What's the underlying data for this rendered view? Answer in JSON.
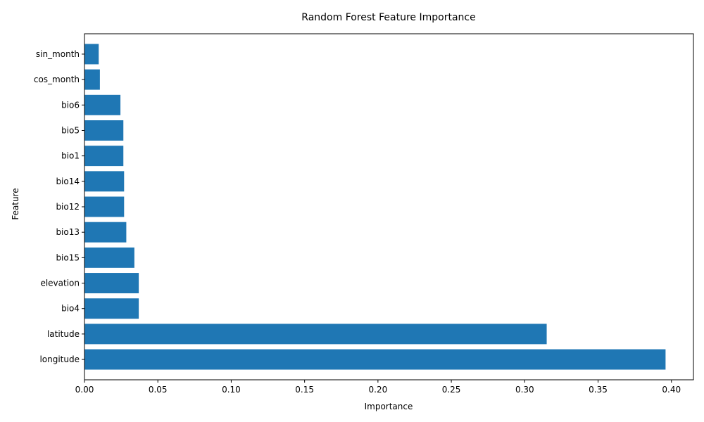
{
  "chart_data": {
    "type": "bar",
    "orientation": "horizontal",
    "title": "Random Forest Feature Importance",
    "xlabel": "Importance",
    "ylabel": "Feature",
    "categories": [
      "longitude",
      "latitude",
      "bio4",
      "elevation",
      "bio15",
      "bio13",
      "bio12",
      "bio14",
      "bio1",
      "bio5",
      "bio6",
      "cos_month",
      "sin_month"
    ],
    "values": [
      0.396,
      0.315,
      0.037,
      0.037,
      0.034,
      0.0285,
      0.027,
      0.027,
      0.0265,
      0.0265,
      0.0245,
      0.0105,
      0.0097
    ],
    "xlim": [
      0,
      0.415
    ],
    "xticks": [
      "0.00",
      "0.05",
      "0.10",
      "0.15",
      "0.20",
      "0.25",
      "0.30",
      "0.35",
      "0.40"
    ],
    "bar_color": "#1f77b4",
    "grid": false,
    "legend": "none"
  }
}
